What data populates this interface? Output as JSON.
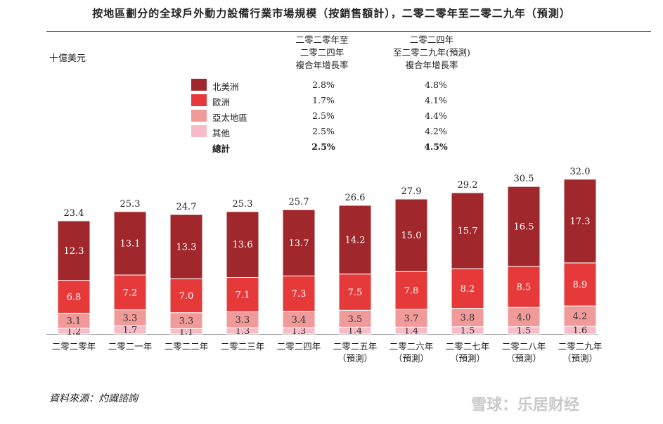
{
  "title": "按地區劃分的全球戶外動力設備行業市場規模（按銷售額計），二零二零年至二零二九年（預測）",
  "unit": "十億美元",
  "cagr_headers": [
    [
      "二零二零年至",
      "二零二四年",
      "複合年增長率"
    ],
    [
      "二零二四年",
      "至二零二九年(預測)",
      "複合年增長率"
    ]
  ],
  "legend": [
    {
      "label": "北美洲",
      "color": "#a0282d",
      "cagr_2020_2024": "2.8%",
      "cagr_2024_2029": "4.8%"
    },
    {
      "label": "歐洲",
      "color": "#e63a3a",
      "cagr_2020_2024": "1.7%",
      "cagr_2024_2029": "4.1%"
    },
    {
      "label": "亞太地區",
      "color": "#f09a9a",
      "cagr_2020_2024": "2.5%",
      "cagr_2024_2029": "4.4%"
    },
    {
      "label": "其他",
      "color": "#f7bcc8",
      "cagr_2020_2024": "2.5%",
      "cagr_2024_2029": "4.2%"
    }
  ],
  "total_row": {
    "label": "總計",
    "cagr_2020_2024": "2.5%",
    "cagr_2024_2029": "4.5%"
  },
  "chart_data": {
    "type": "bar",
    "stacked": true,
    "categories": [
      [
        "二零二零年"
      ],
      [
        "二零二一年"
      ],
      [
        "二零二二年"
      ],
      [
        "二零二三年"
      ],
      [
        "二零二四年"
      ],
      [
        "二零二五年",
        "（預測）"
      ],
      [
        "二零二六年",
        "（預測）"
      ],
      [
        "二零二七年",
        "（預測）"
      ],
      [
        "二零二八年",
        "（預測）"
      ],
      [
        "二零二九年",
        "（預測）"
      ]
    ],
    "series": [
      {
        "name": "其他",
        "color": "#f7bcc8",
        "values": [
          1.2,
          1.7,
          1.1,
          1.3,
          1.3,
          1.4,
          1.4,
          1.5,
          1.5,
          1.6
        ]
      },
      {
        "name": "亞太地區",
        "color": "#f09a9a",
        "values": [
          3.1,
          3.3,
          3.3,
          3.3,
          3.4,
          3.5,
          3.7,
          3.8,
          4.0,
          4.2
        ]
      },
      {
        "name": "歐洲",
        "color": "#e63a3a",
        "values": [
          6.8,
          7.2,
          7.0,
          7.1,
          7.3,
          7.5,
          7.8,
          8.2,
          8.5,
          8.9
        ]
      },
      {
        "name": "北美洲",
        "color": "#a0282d",
        "values": [
          12.3,
          13.1,
          13.3,
          13.6,
          13.7,
          14.2,
          15.0,
          15.7,
          16.5,
          17.3
        ]
      }
    ],
    "totals": [
      23.4,
      25.3,
      24.7,
      25.3,
      25.7,
      26.6,
      27.9,
      29.2,
      30.5,
      32.0
    ]
  },
  "source": "資料來源：灼識諮詢",
  "watermark": "雪球：乐居财经"
}
